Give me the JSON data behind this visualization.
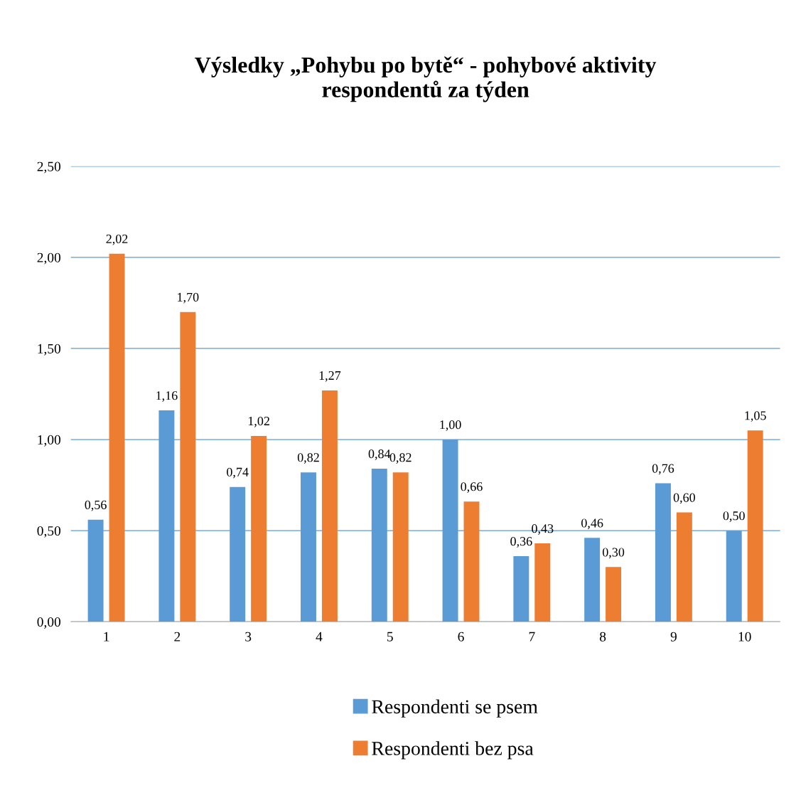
{
  "chart_data": {
    "type": "bar",
    "title": "Výsledky „Pohybu po bytě“ - pohybové aktivity\nrespondentů za týden",
    "categories": [
      "1",
      "2",
      "3",
      "4",
      "5",
      "6",
      "7",
      "8",
      "9",
      "10"
    ],
    "series": [
      {
        "name": "Respondenti se psem",
        "color": "#5b9bd5",
        "values": [
          0.56,
          1.16,
          0.74,
          0.82,
          0.84,
          1.0,
          0.36,
          0.46,
          0.76,
          0.5
        ],
        "value_labels": [
          "0,56",
          "1,16",
          "0,74",
          "0,82",
          "0,84",
          "1,00",
          "0,36",
          "0,46",
          "0,76",
          "0,50"
        ]
      },
      {
        "name": "Respondenti bez psa",
        "color": "#ed7d31",
        "values": [
          2.02,
          1.7,
          1.02,
          1.27,
          0.82,
          0.66,
          0.43,
          0.3,
          0.6,
          1.05
        ],
        "value_labels": [
          "2,02",
          "1,70",
          "1,02",
          "1,27",
          "0,82",
          "0,66",
          "0,43",
          "0,30",
          "0,60",
          "1,05"
        ]
      }
    ],
    "ylim": [
      0,
      2.5
    ],
    "yticks": [
      {
        "value": 0,
        "label": "0,00"
      },
      {
        "value": 0.5,
        "label": "0,50"
      },
      {
        "value": 1,
        "label": "1,00"
      },
      {
        "value": 1.5,
        "label": "1,50"
      },
      {
        "value": 2,
        "label": "2,00"
      },
      {
        "value": 2.5,
        "label": "2,50"
      }
    ],
    "grid": "y",
    "legend": "bottom"
  }
}
